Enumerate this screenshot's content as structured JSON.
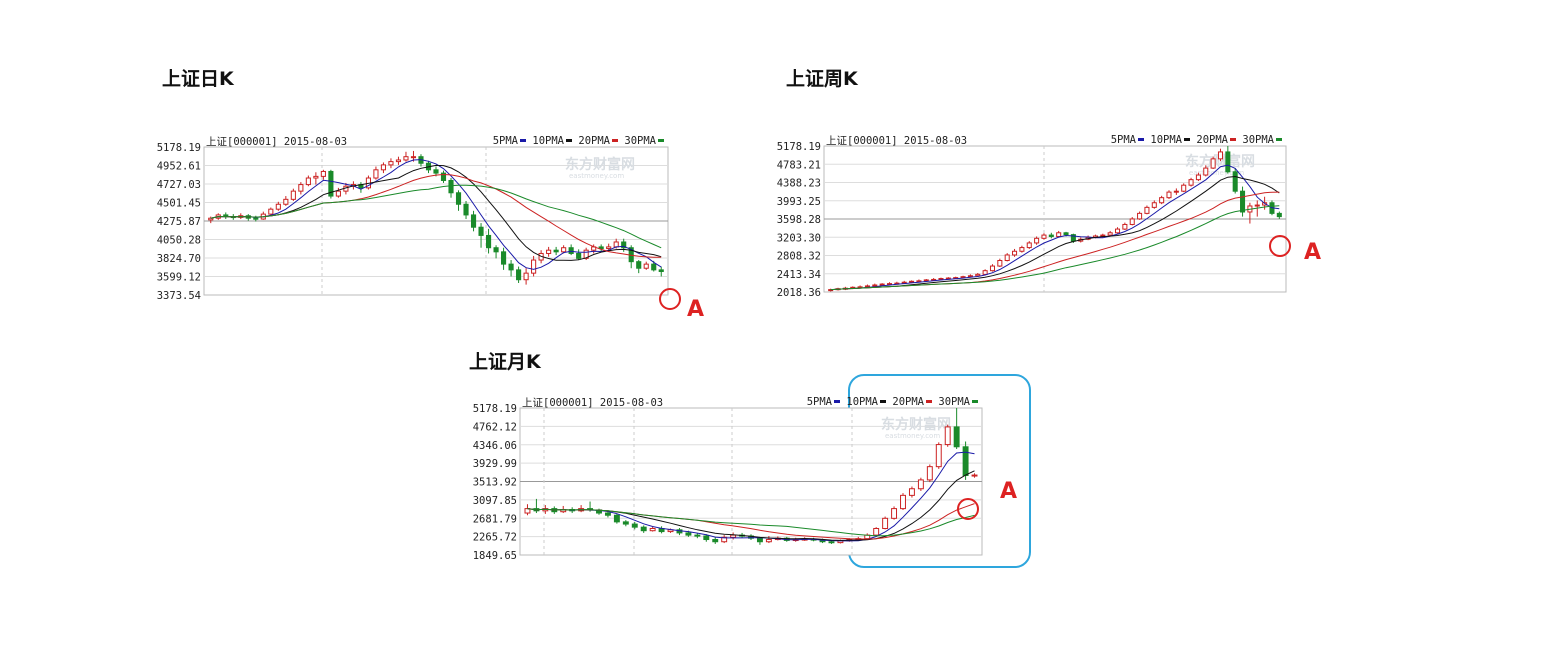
{
  "titles": {
    "daily": "上证日K",
    "weekly": "上证周K",
    "monthly": "上证月K"
  },
  "colors": {
    "up": "#cc2222",
    "down": "#1a8a2a",
    "ma5": "#1a1aa8",
    "ma10": "#111111",
    "ma20": "#cc2222",
    "ma30": "#1a8a2a",
    "circle": "#dd2222",
    "letter": "#dd2222",
    "box": "#2ea6dd"
  },
  "charts": [
    {
      "id": "daily",
      "header": "上证[000001] 2015-08-03",
      "legend": [
        "5PMA",
        "10PMA",
        "20PMA",
        "30PMA"
      ],
      "watermark": {
        "cn": "东方财富网",
        "en": "eastmoney.com"
      },
      "marker_letter": "A",
      "ticks": [
        "5178.19",
        "4952.61",
        "4727.03",
        "4501.45",
        "4275.87",
        "4050.28",
        "3824.70",
        "3599.12",
        "3373.54"
      ]
    },
    {
      "id": "weekly",
      "header": "上证[000001] 2015-08-03",
      "legend": [
        "5PMA",
        "10PMA",
        "20PMA",
        "30PMA"
      ],
      "watermark": {
        "cn": "东方财富网",
        "en": "eastmoney.com"
      },
      "marker_letter": "A",
      "ticks": [
        "5178.19",
        "4783.21",
        "4388.23",
        "3993.25",
        "3598.28",
        "3203.30",
        "2808.32",
        "2413.34",
        "2018.36"
      ]
    },
    {
      "id": "monthly",
      "header": "上证[000001] 2015-08-03",
      "legend": [
        "5PMA",
        "10PMA",
        "20PMA",
        "30PMA"
      ],
      "watermark": {
        "cn": "东方财富网",
        "en": "eastmoney.com"
      },
      "marker_letter": "A",
      "ticks": [
        "5178.19",
        "4762.12",
        "4346.06",
        "3929.99",
        "3513.92",
        "3097.85",
        "2681.79",
        "2265.72",
        "1849.65"
      ]
    }
  ],
  "chart_data": [
    {
      "type": "candlestick",
      "title": "上证日K",
      "ylim": [
        3373.54,
        5178.19
      ],
      "legend_placement": "top-right",
      "series": [
        {
          "name": "5PMA"
        },
        {
          "name": "10PMA"
        },
        {
          "name": "20PMA"
        },
        {
          "name": "30PMA"
        }
      ],
      "candles": [
        [
          4290,
          4310,
          4250,
          4330
        ],
        [
          4310,
          4350,
          4290,
          4370
        ],
        [
          4350,
          4330,
          4300,
          4380
        ],
        [
          4330,
          4320,
          4290,
          4360
        ],
        [
          4320,
          4340,
          4300,
          4370
        ],
        [
          4340,
          4310,
          4280,
          4360
        ],
        [
          4310,
          4300,
          4270,
          4340
        ],
        [
          4300,
          4360,
          4290,
          4390
        ],
        [
          4360,
          4420,
          4340,
          4440
        ],
        [
          4420,
          4480,
          4400,
          4510
        ],
        [
          4480,
          4540,
          4460,
          4580
        ],
        [
          4540,
          4640,
          4520,
          4670
        ],
        [
          4640,
          4720,
          4600,
          4750
        ],
        [
          4720,
          4800,
          4700,
          4830
        ],
        [
          4800,
          4820,
          4720,
          4870
        ],
        [
          4820,
          4880,
          4780,
          4900
        ],
        [
          4880,
          4580,
          4550,
          4900
        ],
        [
          4580,
          4640,
          4560,
          4680
        ],
        [
          4640,
          4700,
          4600,
          4740
        ],
        [
          4700,
          4720,
          4660,
          4760
        ],
        [
          4720,
          4680,
          4620,
          4750
        ],
        [
          4680,
          4800,
          4660,
          4830
        ],
        [
          4800,
          4900,
          4780,
          4940
        ],
        [
          4900,
          4960,
          4860,
          4990
        ],
        [
          4960,
          5000,
          4920,
          5040
        ],
        [
          5000,
          5020,
          4960,
          5060
        ],
        [
          5020,
          5060,
          5000,
          5120
        ],
        [
          5060,
          5060,
          5000,
          5130
        ],
        [
          5060,
          4980,
          4940,
          5090
        ],
        [
          4980,
          4900,
          4860,
          5010
        ],
        [
          4900,
          4860,
          4820,
          4940
        ],
        [
          4860,
          4770,
          4740,
          4890
        ],
        [
          4770,
          4620,
          4560,
          4800
        ],
        [
          4620,
          4480,
          4400,
          4650
        ],
        [
          4480,
          4350,
          4300,
          4520
        ],
        [
          4350,
          4200,
          4150,
          4400
        ],
        [
          4200,
          4100,
          3950,
          4250
        ],
        [
          4100,
          3950,
          3880,
          4180
        ],
        [
          3950,
          3900,
          3820,
          3980
        ],
        [
          3900,
          3750,
          3680,
          3950
        ],
        [
          3750,
          3680,
          3600,
          3800
        ],
        [
          3680,
          3560,
          3520,
          3720
        ],
        [
          3560,
          3640,
          3500,
          3700
        ],
        [
          3640,
          3800,
          3600,
          3850
        ],
        [
          3800,
          3880,
          3760,
          3920
        ],
        [
          3880,
          3920,
          3840,
          3960
        ],
        [
          3920,
          3900,
          3860,
          3960
        ],
        [
          3900,
          3950,
          3880,
          3980
        ],
        [
          3950,
          3880,
          3860,
          3990
        ],
        [
          3880,
          3820,
          3800,
          3930
        ],
        [
          3820,
          3920,
          3800,
          3950
        ],
        [
          3920,
          3960,
          3880,
          3990
        ],
        [
          3960,
          3940,
          3900,
          3990
        ],
        [
          3940,
          3960,
          3920,
          4000
        ],
        [
          3960,
          4020,
          3940,
          4060
        ],
        [
          4020,
          3950,
          3900,
          4060
        ],
        [
          3950,
          3780,
          3700,
          3980
        ],
        [
          3780,
          3700,
          3640,
          3800
        ],
        [
          3700,
          3750,
          3680,
          3780
        ],
        [
          3750,
          3680,
          3660,
          3790
        ],
        [
          3680,
          3660,
          3600,
          3720
        ]
      ]
    },
    {
      "type": "candlestick",
      "title": "上证周K",
      "ylim": [
        2018.36,
        5178.19
      ],
      "legend_placement": "top-right",
      "series": [
        {
          "name": "5PMA"
        },
        {
          "name": "10PMA"
        },
        {
          "name": "20PMA"
        },
        {
          "name": "30PMA"
        }
      ],
      "candles": [
        [
          2050,
          2070,
          2030,
          2090
        ],
        [
          2070,
          2090,
          2050,
          2110
        ],
        [
          2090,
          2100,
          2060,
          2130
        ],
        [
          2100,
          2120,
          2080,
          2140
        ],
        [
          2120,
          2130,
          2100,
          2160
        ],
        [
          2130,
          2150,
          2110,
          2180
        ],
        [
          2150,
          2170,
          2130,
          2200
        ],
        [
          2170,
          2190,
          2150,
          2210
        ],
        [
          2190,
          2200,
          2170,
          2230
        ],
        [
          2200,
          2210,
          2180,
          2240
        ],
        [
          2210,
          2230,
          2190,
          2260
        ],
        [
          2230,
          2250,
          2210,
          2270
        ],
        [
          2250,
          2260,
          2230,
          2290
        ],
        [
          2260,
          2280,
          2240,
          2300
        ],
        [
          2280,
          2290,
          2260,
          2320
        ],
        [
          2290,
          2310,
          2270,
          2330
        ],
        [
          2310,
          2320,
          2290,
          2340
        ],
        [
          2320,
          2330,
          2300,
          2350
        ],
        [
          2330,
          2350,
          2310,
          2370
        ],
        [
          2350,
          2370,
          2330,
          2400
        ],
        [
          2370,
          2400,
          2350,
          2430
        ],
        [
          2400,
          2480,
          2380,
          2510
        ],
        [
          2480,
          2580,
          2460,
          2620
        ],
        [
          2580,
          2700,
          2560,
          2740
        ],
        [
          2700,
          2820,
          2680,
          2860
        ],
        [
          2820,
          2900,
          2780,
          2950
        ],
        [
          2900,
          2980,
          2870,
          3020
        ],
        [
          2980,
          3080,
          2950,
          3120
        ],
        [
          3080,
          3180,
          3040,
          3220
        ],
        [
          3180,
          3250,
          3150,
          3290
        ],
        [
          3250,
          3220,
          3180,
          3300
        ],
        [
          3220,
          3300,
          3200,
          3340
        ],
        [
          3300,
          3260,
          3220,
          3320
        ],
        [
          3260,
          3120,
          3080,
          3280
        ],
        [
          3120,
          3160,
          3090,
          3200
        ],
        [
          3160,
          3200,
          3140,
          3240
        ],
        [
          3200,
          3230,
          3180,
          3260
        ],
        [
          3230,
          3250,
          3200,
          3280
        ],
        [
          3250,
          3300,
          3220,
          3340
        ],
        [
          3300,
          3380,
          3280,
          3420
        ],
        [
          3380,
          3480,
          3360,
          3520
        ],
        [
          3480,
          3600,
          3460,
          3640
        ],
        [
          3600,
          3720,
          3580,
          3760
        ],
        [
          3720,
          3850,
          3700,
          3890
        ],
        [
          3850,
          3950,
          3820,
          4000
        ],
        [
          3950,
          4060,
          3920,
          4100
        ],
        [
          4060,
          4180,
          4030,
          4220
        ],
        [
          4180,
          4200,
          4120,
          4260
        ],
        [
          4200,
          4330,
          4180,
          4370
        ],
        [
          4330,
          4450,
          4300,
          4490
        ],
        [
          4450,
          4550,
          4420,
          4600
        ],
        [
          4550,
          4700,
          4520,
          4760
        ],
        [
          4700,
          4900,
          4680,
          4950
        ],
        [
          4900,
          5050,
          4850,
          5120
        ],
        [
          5050,
          4620,
          4580,
          5178
        ],
        [
          4620,
          4200,
          4150,
          4700
        ],
        [
          4200,
          3750,
          3650,
          4300
        ],
        [
          3750,
          3880,
          3500,
          3950
        ],
        [
          3880,
          3900,
          3650,
          4000
        ],
        [
          3900,
          3950,
          3800,
          4080
        ],
        [
          3950,
          3720,
          3680,
          4000
        ],
        [
          3720,
          3650,
          3600,
          3760
        ]
      ]
    },
    {
      "type": "candlestick",
      "title": "上证月K",
      "ylim": [
        1849.65,
        5178.19
      ],
      "legend_placement": "top-right",
      "series": [
        {
          "name": "5PMA"
        },
        {
          "name": "10PMA"
        },
        {
          "name": "20PMA"
        },
        {
          "name": "30PMA"
        }
      ],
      "candles": [
        [
          2800,
          2900,
          2750,
          3000
        ],
        [
          2900,
          2850,
          2800,
          3120
        ],
        [
          2850,
          2900,
          2780,
          2980
        ],
        [
          2900,
          2830,
          2780,
          2950
        ],
        [
          2830,
          2880,
          2800,
          2960
        ],
        [
          2880,
          2850,
          2800,
          2930
        ],
        [
          2850,
          2900,
          2820,
          2980
        ],
        [
          2900,
          2870,
          2830,
          3060
        ],
        [
          2870,
          2800,
          2760,
          2900
        ],
        [
          2800,
          2750,
          2700,
          2850
        ],
        [
          2750,
          2600,
          2560,
          2780
        ],
        [
          2600,
          2550,
          2500,
          2640
        ],
        [
          2550,
          2480,
          2430,
          2600
        ],
        [
          2480,
          2400,
          2350,
          2520
        ],
        [
          2400,
          2450,
          2380,
          2500
        ],
        [
          2450,
          2380,
          2340,
          2500
        ],
        [
          2380,
          2420,
          2350,
          2450
        ],
        [
          2420,
          2350,
          2300,
          2460
        ],
        [
          2350,
          2300,
          2260,
          2400
        ],
        [
          2300,
          2280,
          2230,
          2350
        ],
        [
          2280,
          2200,
          2150,
          2320
        ],
        [
          2200,
          2150,
          2100,
          2260
        ],
        [
          2150,
          2250,
          2120,
          2300
        ],
        [
          2250,
          2300,
          2200,
          2360
        ],
        [
          2300,
          2280,
          2240,
          2350
        ],
        [
          2280,
          2230,
          2190,
          2320
        ],
        [
          2230,
          2150,
          2080,
          2260
        ],
        [
          2150,
          2200,
          2120,
          2280
        ],
        [
          2200,
          2230,
          2180,
          2270
        ],
        [
          2230,
          2180,
          2150,
          2260
        ],
        [
          2180,
          2200,
          2150,
          2240
        ],
        [
          2200,
          2210,
          2170,
          2250
        ],
        [
          2210,
          2190,
          2160,
          2240
        ],
        [
          2190,
          2150,
          2120,
          2220
        ],
        [
          2150,
          2130,
          2100,
          2190
        ],
        [
          2130,
          2170,
          2110,
          2200
        ],
        [
          2170,
          2200,
          2150,
          2230
        ],
        [
          2200,
          2220,
          2180,
          2260
        ],
        [
          2220,
          2300,
          2200,
          2340
        ],
        [
          2300,
          2450,
          2280,
          2480
        ],
        [
          2450,
          2680,
          2430,
          2720
        ],
        [
          2680,
          2900,
          2650,
          2950
        ],
        [
          2900,
          3200,
          2870,
          3250
        ],
        [
          3200,
          3350,
          3150,
          3400
        ],
        [
          3350,
          3550,
          3300,
          3600
        ],
        [
          3550,
          3850,
          3500,
          3900
        ],
        [
          3850,
          4350,
          3800,
          4400
        ],
        [
          4350,
          4750,
          4300,
          4800
        ],
        [
          4750,
          4300,
          4250,
          5178
        ],
        [
          4300,
          3650,
          3550,
          4420
        ],
        [
          3650,
          3660,
          3600,
          3700
        ]
      ]
    }
  ]
}
